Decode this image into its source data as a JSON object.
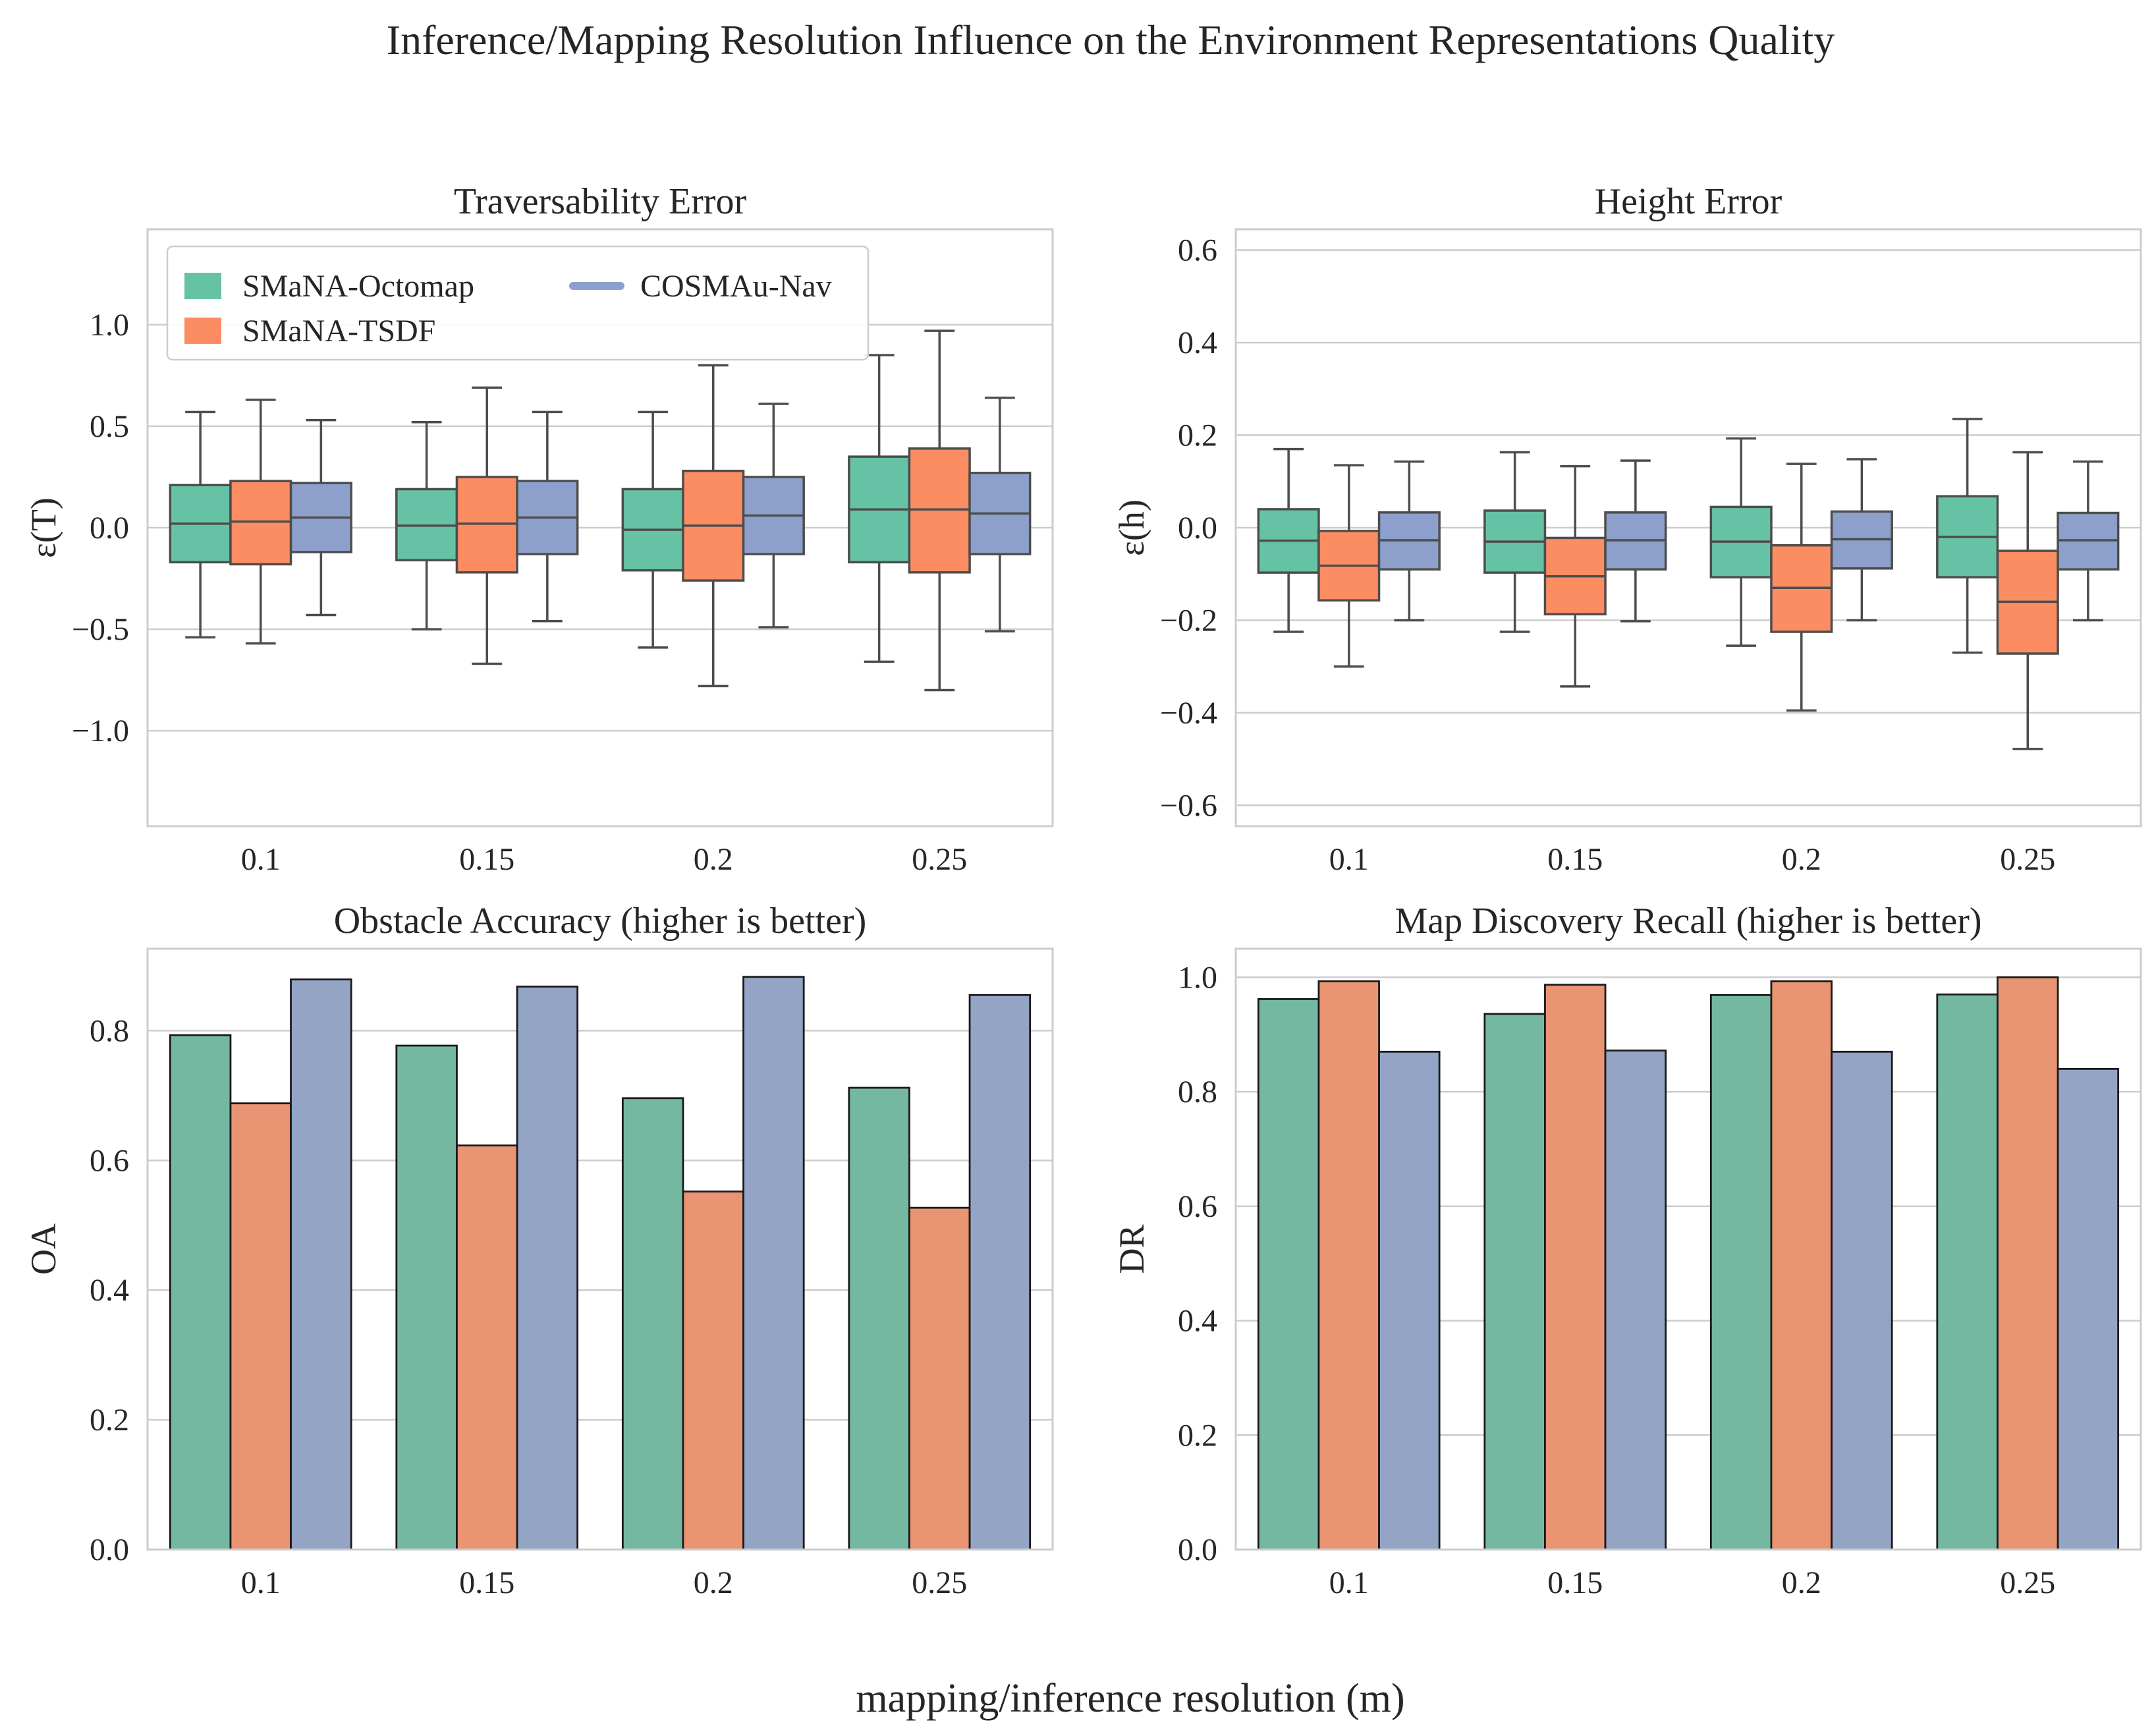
{
  "figure": {
    "suptitle": "Inference/Mapping Resolution Influence on the Environment Representations Quality",
    "xlabel": "mapping/inference resolution (m)"
  },
  "colors": {
    "octomap": "#66c2a5",
    "tsdf": "#fc8d62",
    "cosmau": "#8da0cb",
    "octomap_bar": "#75b8a2",
    "tsdf_bar": "#e99573",
    "cosmau_bar": "#94a4c5",
    "grid": "#cccccc",
    "line": "#4d4d4d"
  },
  "legend": {
    "items": [
      {
        "label": "SMaNA-Octomap",
        "color": "#66c2a5",
        "marker": "patch"
      },
      {
        "label": "SMaNA-TSDF",
        "color": "#fc8d62",
        "marker": "patch"
      },
      {
        "label": "COSMAu-Nav",
        "color": "#8da0cb",
        "marker": "line"
      }
    ],
    "placement": "top-left"
  },
  "chart_data": [
    {
      "id": "trav",
      "type": "box",
      "title": "Traversability Error",
      "ylabel": "ε(T)",
      "categories": [
        "0.1",
        "0.15",
        "0.2",
        "0.25"
      ],
      "ylim": [
        -1.47,
        1.47
      ],
      "yticks": [
        -1.0,
        -0.5,
        0.0,
        0.5,
        1.0
      ],
      "ytick_labels": [
        "−1.0",
        "−0.5",
        "0.0",
        "0.5",
        "1.0"
      ],
      "series": [
        {
          "name": "SMaNA-Octomap",
          "boxes": [
            {
              "min": -0.54,
              "q1": -0.17,
              "median": 0.02,
              "q3": 0.21,
              "max": 0.57
            },
            {
              "min": -0.5,
              "q1": -0.16,
              "median": 0.01,
              "q3": 0.19,
              "max": 0.52
            },
            {
              "min": -0.59,
              "q1": -0.21,
              "median": -0.01,
              "q3": 0.19,
              "max": 0.57
            },
            {
              "min": -0.66,
              "q1": -0.17,
              "median": 0.09,
              "q3": 0.35,
              "max": 0.85
            }
          ]
        },
        {
          "name": "SMaNA-TSDF",
          "boxes": [
            {
              "min": -0.57,
              "q1": -0.18,
              "median": 0.03,
              "q3": 0.23,
              "max": 0.63
            },
            {
              "min": -0.67,
              "q1": -0.22,
              "median": 0.02,
              "q3": 0.25,
              "max": 0.69
            },
            {
              "min": -0.78,
              "q1": -0.26,
              "median": 0.01,
              "q3": 0.28,
              "max": 0.8
            },
            {
              "min": -0.8,
              "q1": -0.22,
              "median": 0.09,
              "q3": 0.39,
              "max": 0.97
            }
          ]
        },
        {
          "name": "COSMAu-Nav",
          "boxes": [
            {
              "min": -0.43,
              "q1": -0.12,
              "median": 0.05,
              "q3": 0.22,
              "max": 0.53
            },
            {
              "min": -0.46,
              "q1": -0.13,
              "median": 0.05,
              "q3": 0.23,
              "max": 0.57
            },
            {
              "min": -0.49,
              "q1": -0.13,
              "median": 0.06,
              "q3": 0.25,
              "max": 0.61
            },
            {
              "min": -0.51,
              "q1": -0.13,
              "median": 0.07,
              "q3": 0.27,
              "max": 0.64
            }
          ]
        }
      ]
    },
    {
      "id": "height",
      "type": "box",
      "title": "Height Error",
      "ylabel": "ε(h)",
      "categories": [
        "0.1",
        "0.15",
        "0.2",
        "0.25"
      ],
      "ylim": [
        -0.645,
        0.645
      ],
      "yticks": [
        -0.6,
        -0.4,
        -0.2,
        0.0,
        0.2,
        0.4,
        0.6
      ],
      "ytick_labels": [
        "−0.6",
        "−0.4",
        "−0.2",
        "0.0",
        "0.2",
        "0.4",
        "0.6"
      ],
      "series": [
        {
          "name": "SMaNA-Octomap",
          "boxes": [
            {
              "min": -0.225,
              "q1": -0.097,
              "median": -0.028,
              "q3": 0.04,
              "max": 0.17
            },
            {
              "min": -0.225,
              "q1": -0.097,
              "median": -0.03,
              "q3": 0.037,
              "max": 0.163
            },
            {
              "min": -0.255,
              "q1": -0.107,
              "median": -0.03,
              "q3": 0.045,
              "max": 0.193
            },
            {
              "min": -0.27,
              "q1": -0.107,
              "median": -0.02,
              "q3": 0.068,
              "max": 0.235
            }
          ]
        },
        {
          "name": "SMaNA-TSDF",
          "boxes": [
            {
              "min": -0.3,
              "q1": -0.157,
              "median": -0.082,
              "q3": -0.007,
              "max": 0.135
            },
            {
              "min": -0.343,
              "q1": -0.187,
              "median": -0.105,
              "q3": -0.022,
              "max": 0.133
            },
            {
              "min": -0.395,
              "q1": -0.225,
              "median": -0.13,
              "q3": -0.038,
              "max": 0.138
            },
            {
              "min": -0.478,
              "q1": -0.272,
              "median": -0.16,
              "q3": -0.05,
              "max": 0.163
            }
          ]
        },
        {
          "name": "COSMAu-Nav",
          "boxes": [
            {
              "min": -0.2,
              "q1": -0.09,
              "median": -0.027,
              "q3": 0.033,
              "max": 0.143
            },
            {
              "min": -0.202,
              "q1": -0.09,
              "median": -0.027,
              "q3": 0.033,
              "max": 0.145
            },
            {
              "min": -0.2,
              "q1": -0.088,
              "median": -0.025,
              "q3": 0.035,
              "max": 0.148
            },
            {
              "min": -0.2,
              "q1": -0.09,
              "median": -0.027,
              "q3": 0.032,
              "max": 0.143
            }
          ]
        }
      ]
    },
    {
      "id": "oa",
      "type": "bar",
      "title": "Obstacle Accuracy (higher is better)",
      "ylabel": "OA",
      "categories": [
        "0.1",
        "0.15",
        "0.2",
        "0.25"
      ],
      "ylim": [
        0.0,
        0.9264
      ],
      "yticks": [
        0.0,
        0.2,
        0.4,
        0.6,
        0.8
      ],
      "ytick_labels": [
        "0.0",
        "0.2",
        "0.4",
        "0.6",
        "0.8"
      ],
      "series": [
        {
          "name": "SMaNA-Octomap",
          "values": [
            0.793,
            0.777,
            0.696,
            0.712
          ]
        },
        {
          "name": "SMaNA-TSDF",
          "values": [
            0.688,
            0.623,
            0.552,
            0.527
          ]
        },
        {
          "name": "COSMAu-Nav",
          "values": [
            0.879,
            0.868,
            0.883,
            0.855
          ]
        }
      ]
    },
    {
      "id": "dr",
      "type": "bar",
      "title": "Map Discovery Recall (higher is better)",
      "ylabel": "DR",
      "categories": [
        "0.1",
        "0.15",
        "0.2",
        "0.25"
      ],
      "ylim": [
        0.0,
        1.05
      ],
      "yticks": [
        0.0,
        0.2,
        0.4,
        0.6,
        0.8,
        1.0
      ],
      "ytick_labels": [
        "0.0",
        "0.2",
        "0.4",
        "0.6",
        "0.8",
        "1.0"
      ],
      "series": [
        {
          "name": "SMaNA-Octomap",
          "values": [
            0.962,
            0.936,
            0.969,
            0.97
          ]
        },
        {
          "name": "SMaNA-TSDF",
          "values": [
            0.993,
            0.987,
            0.993,
            1.0
          ]
        },
        {
          "name": "COSMAu-Nav",
          "values": [
            0.87,
            0.872,
            0.87,
            0.84
          ]
        }
      ]
    }
  ]
}
